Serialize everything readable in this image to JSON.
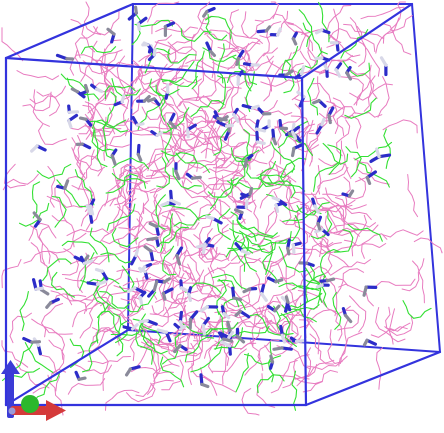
{
  "viewer": {
    "background": "#ffffff",
    "box_color": "#3333dd",
    "molecule_colors": {
      "chain_a": "#e87cc0",
      "chain_b": "#33e033",
      "nitrogen": "#2c2cc8",
      "light_atom": "#d8d8e8",
      "gray_atom": "#8a8a9a"
    },
    "axes_colors": {
      "x_axis": "#d43a3a",
      "y_axis": "#2cb82c",
      "z_axis": "#3b3bd6"
    }
  }
}
